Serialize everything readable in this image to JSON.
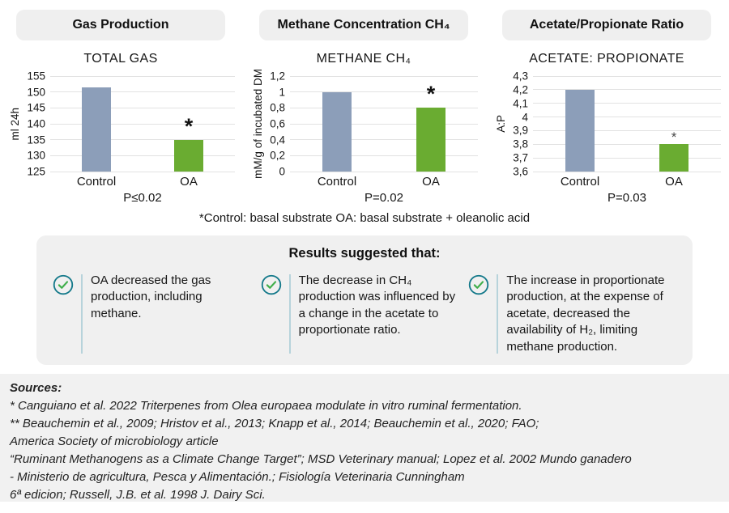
{
  "colors": {
    "control_bar": "#8C9EB9",
    "oa_bar": "#6AAC31",
    "pill_bg": "#EFEFEF",
    "results_bg": "#F0F0F0",
    "sources_bg": "#F1F1F1",
    "gridline": "#E2E2E2",
    "check_circle": "#14798A",
    "check_mark": "#3FAE4A",
    "item_separator": "#B7D3DB"
  },
  "chart_data": [
    {
      "type": "bar",
      "header": "Gas Production",
      "title": "TOTAL GAS",
      "ylabel": "ml 24h",
      "categories": [
        "Control",
        "OA"
      ],
      "values": [
        151.5,
        135
      ],
      "ylim": [
        125,
        155
      ],
      "tick_labels": [
        "155",
        "150",
        "145",
        "140",
        "135",
        "130",
        "125"
      ],
      "p_label": "P≤0.02",
      "star_category": "OA",
      "grid": true,
      "legend": "none"
    },
    {
      "type": "bar",
      "header": "Methane Concentration CH₄",
      "title": "METHANE CH₄",
      "ylabel": "mM/g of incubated DM",
      "categories": [
        "Control",
        "OA"
      ],
      "values": [
        1,
        0.8
      ],
      "ylim": [
        0,
        1.2
      ],
      "tick_labels": [
        "1,2",
        "1",
        "0,8",
        "0,6",
        "0,4",
        "0,2",
        "0"
      ],
      "p_label": "P=0.02",
      "star_category": "OA",
      "grid": true,
      "legend": "none"
    },
    {
      "type": "bar",
      "header": "Acetate/Propionate Ratio",
      "title": "ACETATE: PROPIONATE",
      "ylabel": "A:P",
      "categories": [
        "Control",
        "OA"
      ],
      "values": [
        4.2,
        3.8
      ],
      "ylim": [
        3.6,
        4.3
      ],
      "tick_labels": [
        "4,3",
        "4,2",
        "4,1",
        "4",
        "3,9",
        "3,8",
        "3,7",
        "3,6"
      ],
      "p_label": "P=0.03",
      "star_category": "OA",
      "grid": true,
      "legend": "none"
    }
  ],
  "footnote": "*Control: basal substrate OA: basal substrate + oleanolic acid",
  "results": {
    "title": "Results suggested that:",
    "items": [
      "OA decreased the gas production, including methane.",
      "The decrease in CH₄ production was influenced by a change in the acetate to proportionate ratio.",
      "The increase in proportionate production, at the expense of acetate, decreased the availability of H₂, limiting methane production."
    ]
  },
  "sources": {
    "heading": "Sources:",
    "lines": [
      "* Canguiano et al. 2022 Triterpenes from Olea europaea modulate in vitro ruminal fermentation.",
      "** Beauchemin et al., 2009; Hristov et al., 2013; Knapp et al., 2014; Beauchemin et al., 2020; FAO;",
      "America Society of microbiology article",
      "“Ruminant Methanogens as a Climate Change Target”; MSD Veterinary manual; Lopez et al. 2002 Mundo ganadero",
      "- Ministerio de agricultura,  Pesca y Alimentación.; Fisiología Veterinaria Cunningham",
      "6ª edicion; Russell, J.B. et al. 1998 J. Dairy Sci."
    ]
  }
}
